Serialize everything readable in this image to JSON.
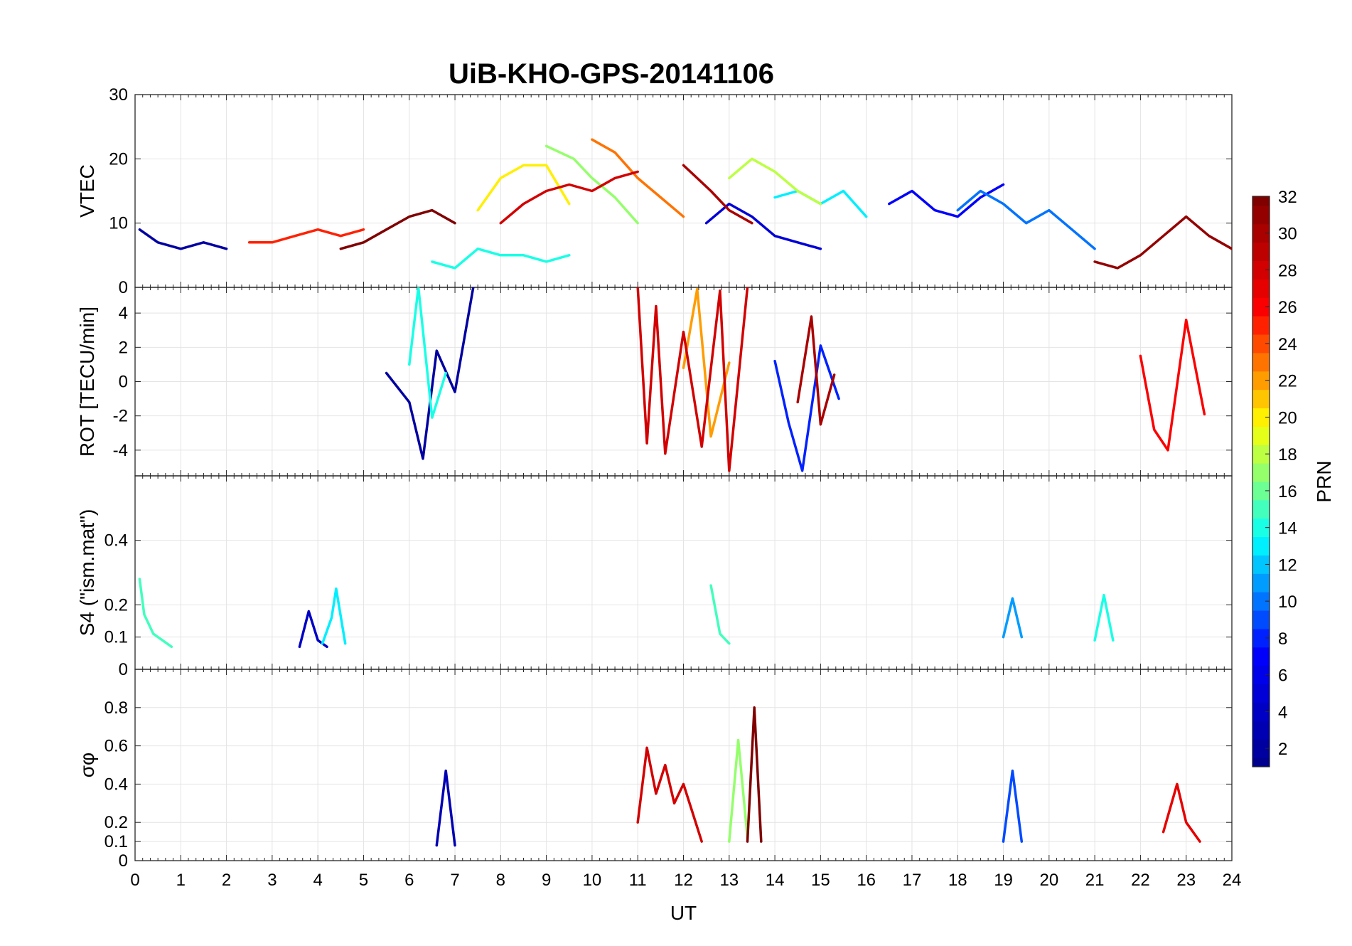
{
  "figure": {
    "title": "UiB-KHO-GPS-20141106"
  },
  "chart_data": [
    {
      "type": "line",
      "panel": "vtec",
      "ylabel": "VTEC",
      "xlim": [
        0,
        24
      ],
      "ylim": [
        0,
        30
      ],
      "yticks": [
        0,
        10,
        20,
        30
      ],
      "ytick_labels": [
        "0",
        "10",
        "20",
        "30"
      ],
      "grid": true,
      "series": [
        {
          "prn": 2,
          "x": [
            0.1,
            0.5,
            1.0,
            1.5,
            2.0
          ],
          "y": [
            9,
            7,
            6,
            7,
            6
          ]
        },
        {
          "prn": 5,
          "x": [
            12.5,
            13.0,
            13.5,
            14.0,
            14.5,
            15.0
          ],
          "y": [
            10,
            13,
            11,
            8,
            7,
            6
          ]
        },
        {
          "prn": 7,
          "x": [
            16.5,
            17.0,
            17.5,
            18.0,
            18.5,
            19.0
          ],
          "y": [
            13,
            15,
            12,
            11,
            14,
            16
          ]
        },
        {
          "prn": 10,
          "x": [
            18.0,
            18.5,
            19.0,
            19.5,
            20.0,
            20.5,
            21.0
          ],
          "y": [
            12,
            15,
            13,
            10,
            12,
            9,
            6
          ]
        },
        {
          "prn": 13,
          "x": [
            14.0,
            14.5,
            15.0,
            15.5,
            16.0
          ],
          "y": [
            14,
            15,
            13,
            15,
            11
          ]
        },
        {
          "prn": 14,
          "x": [
            6.5,
            7.0,
            7.5,
            8.0,
            8.5,
            9.0,
            9.5
          ],
          "y": [
            4,
            3,
            6,
            5,
            5,
            4,
            5
          ]
        },
        {
          "prn": 17,
          "x": [
            9.0,
            9.3,
            9.6,
            10.0,
            10.5,
            11.0
          ],
          "y": [
            22,
            21,
            20,
            17,
            14,
            10
          ]
        },
        {
          "prn": 18,
          "x": [
            13.0,
            13.5,
            14.0,
            14.5,
            15.0
          ],
          "y": [
            17,
            20,
            18,
            15,
            13
          ]
        },
        {
          "prn": 20,
          "x": [
            7.5,
            8.0,
            8.5,
            9.0,
            9.5
          ],
          "y": [
            12,
            17,
            19,
            19,
            13
          ]
        },
        {
          "prn": 23,
          "x": [
            10.0,
            10.5,
            11.0,
            11.5,
            12.0
          ],
          "y": [
            23,
            21,
            17,
            14,
            11
          ]
        },
        {
          "prn": 25,
          "x": [
            2.5,
            3.0,
            3.5,
            4.0,
            4.5,
            5.0
          ],
          "y": [
            7,
            7,
            8,
            9,
            8,
            9
          ]
        },
        {
          "prn": 28,
          "x": [
            8.0,
            8.5,
            9.0,
            9.5,
            10.0,
            10.5,
            11.0
          ],
          "y": [
            10,
            13,
            15,
            16,
            15,
            17,
            18
          ]
        },
        {
          "prn": 30,
          "x": [
            12.0,
            12.3,
            12.6,
            13.0,
            13.5
          ],
          "y": [
            19,
            17,
            15,
            12,
            10
          ]
        },
        {
          "prn": 31,
          "x": [
            21.0,
            21.5,
            22.0,
            22.5,
            23.0,
            23.5,
            24.0
          ],
          "y": [
            4,
            3,
            5,
            8,
            11,
            8,
            6
          ]
        },
        {
          "prn": 32,
          "x": [
            4.5,
            5.0,
            5.5,
            6.0,
            6.5,
            7.0
          ],
          "y": [
            6,
            7,
            9,
            11,
            12,
            10
          ]
        }
      ]
    },
    {
      "type": "line",
      "panel": "rot",
      "ylabel": "ROT [TECU/min]",
      "xlim": [
        0,
        24
      ],
      "ylim": [
        -5.5,
        5.5
      ],
      "yticks": [
        -4,
        -2,
        0,
        2,
        4
      ],
      "ytick_labels": [
        "-4",
        "-2",
        "0",
        "2",
        "4"
      ],
      "grid": true,
      "series": [
        {
          "prn": 2,
          "x": [
            5.5,
            6.0,
            6.3,
            6.6,
            7.0,
            7.4
          ],
          "y": [
            0.5,
            -1.2,
            -4.5,
            1.8,
            -0.6,
            5.5
          ]
        },
        {
          "prn": 8,
          "x": [
            14.0,
            14.3,
            14.6,
            15.0,
            15.4
          ],
          "y": [
            1.2,
            -2.4,
            -5.2,
            2.1,
            -1.0
          ]
        },
        {
          "prn": 14,
          "x": [
            6.0,
            6.2,
            6.5,
            6.8
          ],
          "y": [
            1.0,
            5.5,
            -2.1,
            0.5
          ]
        },
        {
          "prn": 22,
          "x": [
            12.0,
            12.3,
            12.6,
            13.0
          ],
          "y": [
            0.8,
            5.4,
            -3.2,
            1.1
          ]
        },
        {
          "prn": 26,
          "x": [
            22.0,
            22.3,
            22.6,
            23.0,
            23.4
          ],
          "y": [
            1.5,
            -2.8,
            -4.0,
            3.6,
            -1.9
          ]
        },
        {
          "prn": 28,
          "x": [
            11.0,
            11.2,
            11.4,
            11.6,
            12.0,
            12.4,
            12.8,
            13.0,
            13.4
          ],
          "y": [
            5.5,
            -3.6,
            4.4,
            -4.2,
            2.9,
            -3.8,
            5.3,
            -5.2,
            5.5
          ]
        },
        {
          "prn": 30,
          "x": [
            14.5,
            14.8,
            15.0,
            15.3
          ],
          "y": [
            -1.2,
            3.8,
            -2.5,
            0.4
          ]
        }
      ]
    },
    {
      "type": "line",
      "panel": "s4",
      "ylabel": "S4 (\"ism.mat\")",
      "xlim": [
        0,
        24
      ],
      "ylim": [
        0,
        0.6
      ],
      "yticks": [
        0,
        0.1,
        0.2,
        0.4
      ],
      "ytick_labels": [
        "0",
        "0.1",
        "0.2",
        "0.4"
      ],
      "grid": true,
      "series": [
        {
          "prn": 4,
          "x": [
            3.6,
            3.8,
            4.0,
            4.2
          ],
          "y": [
            0.07,
            0.18,
            0.09,
            0.07
          ]
        },
        {
          "prn": 13,
          "x": [
            4.1,
            4.3,
            4.4,
            4.6
          ],
          "y": [
            0.08,
            0.16,
            0.25,
            0.08
          ]
        },
        {
          "prn": 15,
          "x": [
            0.1,
            0.2,
            0.4,
            0.8
          ],
          "y": [
            0.28,
            0.17,
            0.11,
            0.07
          ]
        },
        {
          "prn": 15,
          "x": [
            12.6,
            12.8,
            13.0
          ],
          "y": [
            0.26,
            0.11,
            0.08
          ]
        },
        {
          "prn": 11,
          "x": [
            19.0,
            19.2,
            19.4
          ],
          "y": [
            0.1,
            0.22,
            0.1
          ]
        },
        {
          "prn": 14,
          "x": [
            21.0,
            21.2,
            21.4
          ],
          "y": [
            0.09,
            0.23,
            0.09
          ]
        }
      ]
    },
    {
      "type": "line",
      "panel": "sigma_phi",
      "ylabel": "σφ",
      "xlabel": "UT",
      "xlim": [
        0,
        24
      ],
      "ylim": [
        0,
        1
      ],
      "xticks": [
        0,
        1,
        2,
        3,
        4,
        5,
        6,
        7,
        8,
        9,
        10,
        11,
        12,
        13,
        14,
        15,
        16,
        17,
        18,
        19,
        20,
        21,
        22,
        23,
        24
      ],
      "xtick_labels": [
        "0",
        "1",
        "2",
        "3",
        "4",
        "5",
        "6",
        "7",
        "8",
        "9",
        "10",
        "11",
        "12",
        "13",
        "14",
        "15",
        "16",
        "17",
        "18",
        "19",
        "20",
        "21",
        "22",
        "23",
        "24"
      ],
      "yticks": [
        0,
        0.1,
        0.2,
        0.4,
        0.6,
        0.8
      ],
      "ytick_labels": [
        "0",
        "0.1",
        "0.2",
        "0.4",
        "0.6",
        "0.8"
      ],
      "grid": true,
      "series": [
        {
          "prn": 3,
          "x": [
            6.6,
            6.8,
            7.0
          ],
          "y": [
            0.08,
            0.47,
            0.08
          ]
        },
        {
          "prn": 9,
          "x": [
            19.0,
            19.2,
            19.4
          ],
          "y": [
            0.1,
            0.47,
            0.1
          ]
        },
        {
          "prn": 17,
          "x": [
            13.0,
            13.2,
            13.4
          ],
          "y": [
            0.1,
            0.63,
            0.12
          ]
        },
        {
          "prn": 28,
          "x": [
            11.0,
            11.2,
            11.4,
            11.6,
            11.8,
            12.0,
            12.2,
            12.4
          ],
          "y": [
            0.2,
            0.59,
            0.35,
            0.5,
            0.3,
            0.4,
            0.25,
            0.1
          ]
        },
        {
          "prn": 32,
          "x": [
            13.4,
            13.55,
            13.7
          ],
          "y": [
            0.1,
            0.8,
            0.1
          ]
        },
        {
          "prn": 27,
          "x": [
            22.5,
            22.8,
            23.0,
            23.3
          ],
          "y": [
            0.15,
            0.4,
            0.2,
            0.1
          ]
        }
      ]
    }
  ],
  "colorbar": {
    "label": "PRN",
    "range": [
      1,
      32
    ],
    "ticks": [
      2,
      4,
      6,
      8,
      10,
      12,
      14,
      16,
      18,
      20,
      22,
      24,
      26,
      28,
      30,
      32
    ],
    "tick_labels": [
      "2",
      "4",
      "6",
      "8",
      "10",
      "12",
      "14",
      "16",
      "18",
      "20",
      "22",
      "24",
      "26",
      "28",
      "30",
      "32"
    ],
    "colormap": "jet",
    "stops": [
      "#00008f",
      "#0000ff",
      "#00ffff",
      "#ffff00",
      "#ff0000",
      "#800000"
    ]
  }
}
